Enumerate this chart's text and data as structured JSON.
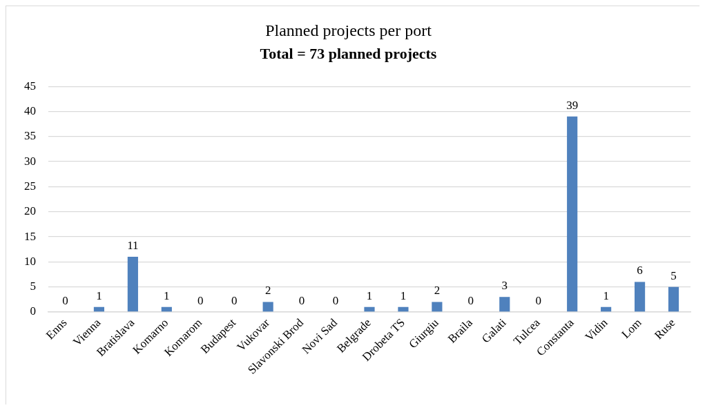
{
  "chart_data": {
    "type": "bar",
    "title": "Planned projects per port",
    "subtitle": "Total = 73 planned projects",
    "categories": [
      "Enns",
      "Vienna",
      "Bratislava",
      "Komarno",
      "Komarom",
      "Budapest",
      "Vukovar",
      "Slavonski Brod",
      "Novi Sad",
      "Belgrade",
      "Drobeta TS",
      "Giurgiu",
      "Braila",
      "Galati",
      "Tulcea",
      "Constanta",
      "Vidin",
      "Lom",
      "Ruse"
    ],
    "values": [
      0,
      1,
      11,
      1,
      0,
      0,
      2,
      0,
      0,
      1,
      1,
      2,
      0,
      3,
      0,
      39,
      1,
      6,
      5
    ],
    "color": "#4f81bd",
    "ylim": [
      0,
      45
    ],
    "yticks": [
      0,
      5,
      10,
      15,
      20,
      25,
      30,
      35,
      40,
      45
    ],
    "grid": "y",
    "data_labels": true
  }
}
